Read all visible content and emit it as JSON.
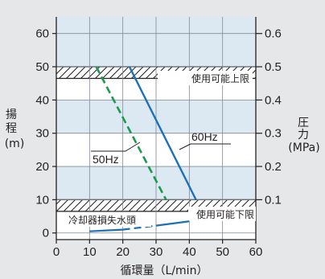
{
  "chart_data": {
    "type": "line",
    "x_axis": {
      "label": "循環量（L/min）",
      "ticks": [
        0,
        10,
        20,
        30,
        40,
        50,
        60
      ],
      "range": [
        0,
        60
      ]
    },
    "y_left": {
      "label": [
        "揚",
        "程",
        "(m)"
      ],
      "ticks": [
        0,
        10,
        20,
        30,
        40,
        50,
        60
      ],
      "range": [
        -2,
        65
      ]
    },
    "y_right": {
      "label": [
        "圧",
        "力",
        "(MPa)"
      ],
      "ticks": [
        "0.1",
        "0.2",
        "0.3",
        "0.4",
        "0.5",
        "0.6"
      ],
      "tick_heads": [
        10,
        20,
        30,
        40,
        50,
        60
      ]
    },
    "grid": true,
    "limit_bands": [
      {
        "label": "使用可能上限",
        "range": [
          46.5,
          50
        ]
      },
      {
        "label": "使用可能下限",
        "range": [
          6.5,
          10
        ]
      }
    ],
    "series": [
      {
        "name": "60Hz",
        "color": "#1d6fb8",
        "style": "solid",
        "points": [
          [
            22,
            50
          ],
          [
            42,
            10
          ]
        ]
      },
      {
        "name": "50Hz",
        "color": "#1a9a4a",
        "style": "dashed",
        "points": [
          [
            12,
            50
          ],
          [
            33,
            10
          ]
        ]
      },
      {
        "name": "冷却器損失水頭",
        "color": "#1d6fb8",
        "style": "partly-dashed",
        "points": [
          [
            10,
            0.5
          ],
          [
            20,
            1
          ],
          [
            30,
            2.2
          ],
          [
            40,
            3.5
          ]
        ]
      }
    ]
  }
}
